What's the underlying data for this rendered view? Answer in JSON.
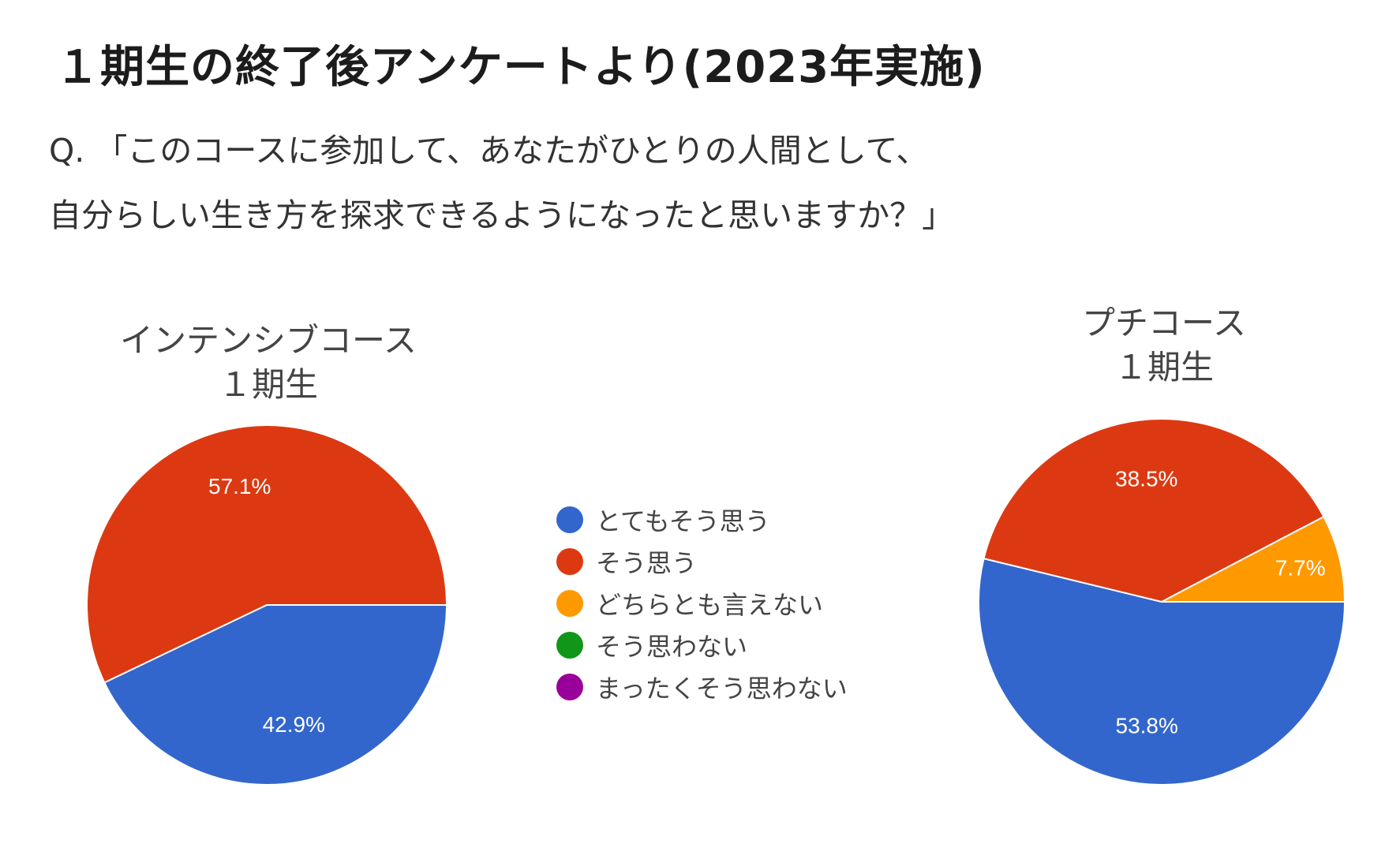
{
  "header": {
    "title": "１期生の終了後アンケートより(2023年実施)",
    "question_line1": "Q. 「このコースに参加して、あなたがひとりの人間として、",
    "question_line2": "自分らしい生き方を探求できるようになったと思いますか？」"
  },
  "chart_data": [
    {
      "type": "pie",
      "title_line1": "インテンシブコース",
      "title_line2": "１期生",
      "categories": [
        "とてもそう思う",
        "そう思う",
        "どちらとも言えない",
        "そう思わない",
        "まったくそう思わない"
      ],
      "values": [
        42.9,
        57.1,
        0,
        0,
        0
      ],
      "labels": [
        "42.9%",
        "57.1%",
        "",
        "",
        ""
      ],
      "colors": [
        "#3366cc",
        "#dc3912",
        "#ff9900",
        "#109618",
        "#990099"
      ],
      "legend": "center"
    },
    {
      "type": "pie",
      "title_line1": "プチコース",
      "title_line2": "１期生",
      "categories": [
        "とてもそう思う",
        "そう思う",
        "どちらとも言えない",
        "そう思わない",
        "まったくそう思わない"
      ],
      "values": [
        53.8,
        38.5,
        7.7,
        0,
        0
      ],
      "labels": [
        "53.8%",
        "38.5%",
        "7.7%",
        "",
        ""
      ],
      "colors": [
        "#3366cc",
        "#dc3912",
        "#ff9900",
        "#109618",
        "#990099"
      ],
      "legend": "center"
    }
  ],
  "legend": {
    "items": [
      {
        "label": "とてもそう思う",
        "color": "#3366cc"
      },
      {
        "label": "そう思う",
        "color": "#dc3912"
      },
      {
        "label": "どちらとも言えない",
        "color": "#ff9900"
      },
      {
        "label": "そう思わない",
        "color": "#109618"
      },
      {
        "label": "まったくそう思わない",
        "color": "#990099"
      }
    ]
  }
}
